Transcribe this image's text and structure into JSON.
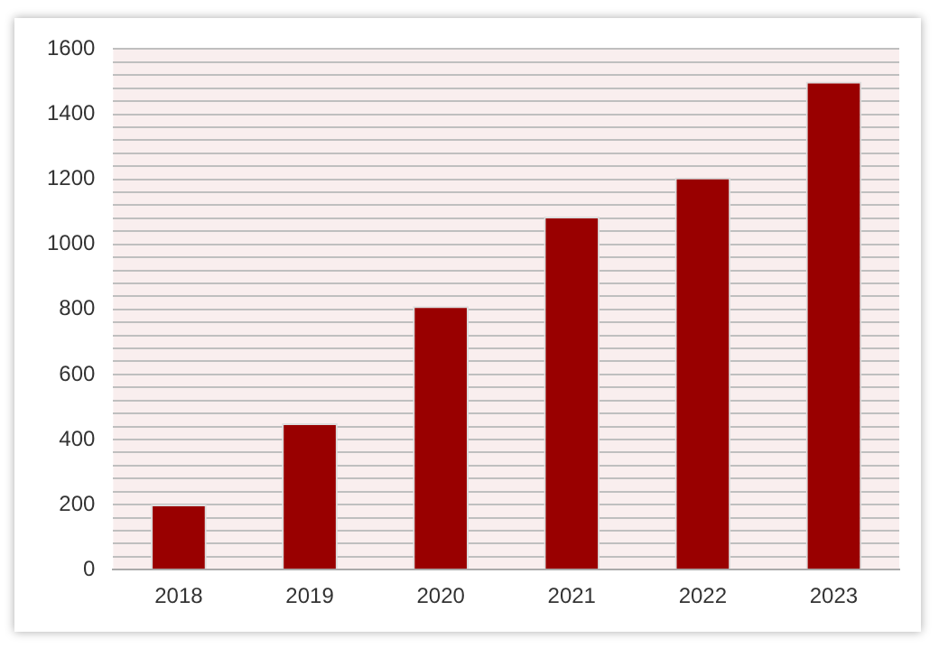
{
  "chart_data": {
    "type": "bar",
    "categories": [
      "2018",
      "2019",
      "2020",
      "2021",
      "2022",
      "2023"
    ],
    "values": [
      200,
      450,
      810,
      1085,
      1205,
      1500
    ],
    "color": "#990000",
    "ylim": [
      0,
      1600
    ],
    "yticks": [
      0,
      {
        "value": 40,
        "label": null
      },
      {
        "value": 80,
        "label": null
      },
      {
        "value": 120,
        "label": null
      },
      {
        "value": 160,
        "label": null
      },
      200,
      {
        "value": 240,
        "label": null
      },
      {
        "value": 280,
        "label": null
      },
      {
        "value": 320,
        "label": null
      },
      {
        "value": 360,
        "label": null
      },
      400,
      {
        "value": 440,
        "label": null
      },
      {
        "value": 480,
        "label": null
      },
      {
        "value": 520,
        "label": null
      },
      {
        "value": 560,
        "label": null
      },
      600,
      {
        "value": 640,
        "label": null
      },
      {
        "value": 680,
        "label": null
      },
      {
        "value": 720,
        "label": null
      },
      {
        "value": 760,
        "label": null
      },
      800,
      {
        "value": 840,
        "label": null
      },
      {
        "value": 880,
        "label": null
      },
      {
        "value": 920,
        "label": null
      },
      {
        "value": 960,
        "label": null
      },
      1000,
      {
        "value": 1040,
        "label": null
      },
      {
        "value": 1080,
        "label": null
      },
      {
        "value": 1120,
        "label": null
      },
      {
        "value": 1160,
        "label": null
      },
      1200,
      {
        "value": 1240,
        "label": null
      },
      {
        "value": 1280,
        "label": null
      },
      {
        "value": 1320,
        "label": null
      },
      {
        "value": 1360,
        "label": null
      },
      1400,
      {
        "value": 1440,
        "label": null
      },
      {
        "value": 1480,
        "label": null
      },
      {
        "value": 1520,
        "label": null
      },
      {
        "value": 1560,
        "label": null
      },
      1600
    ],
    "grid": "y"
  }
}
